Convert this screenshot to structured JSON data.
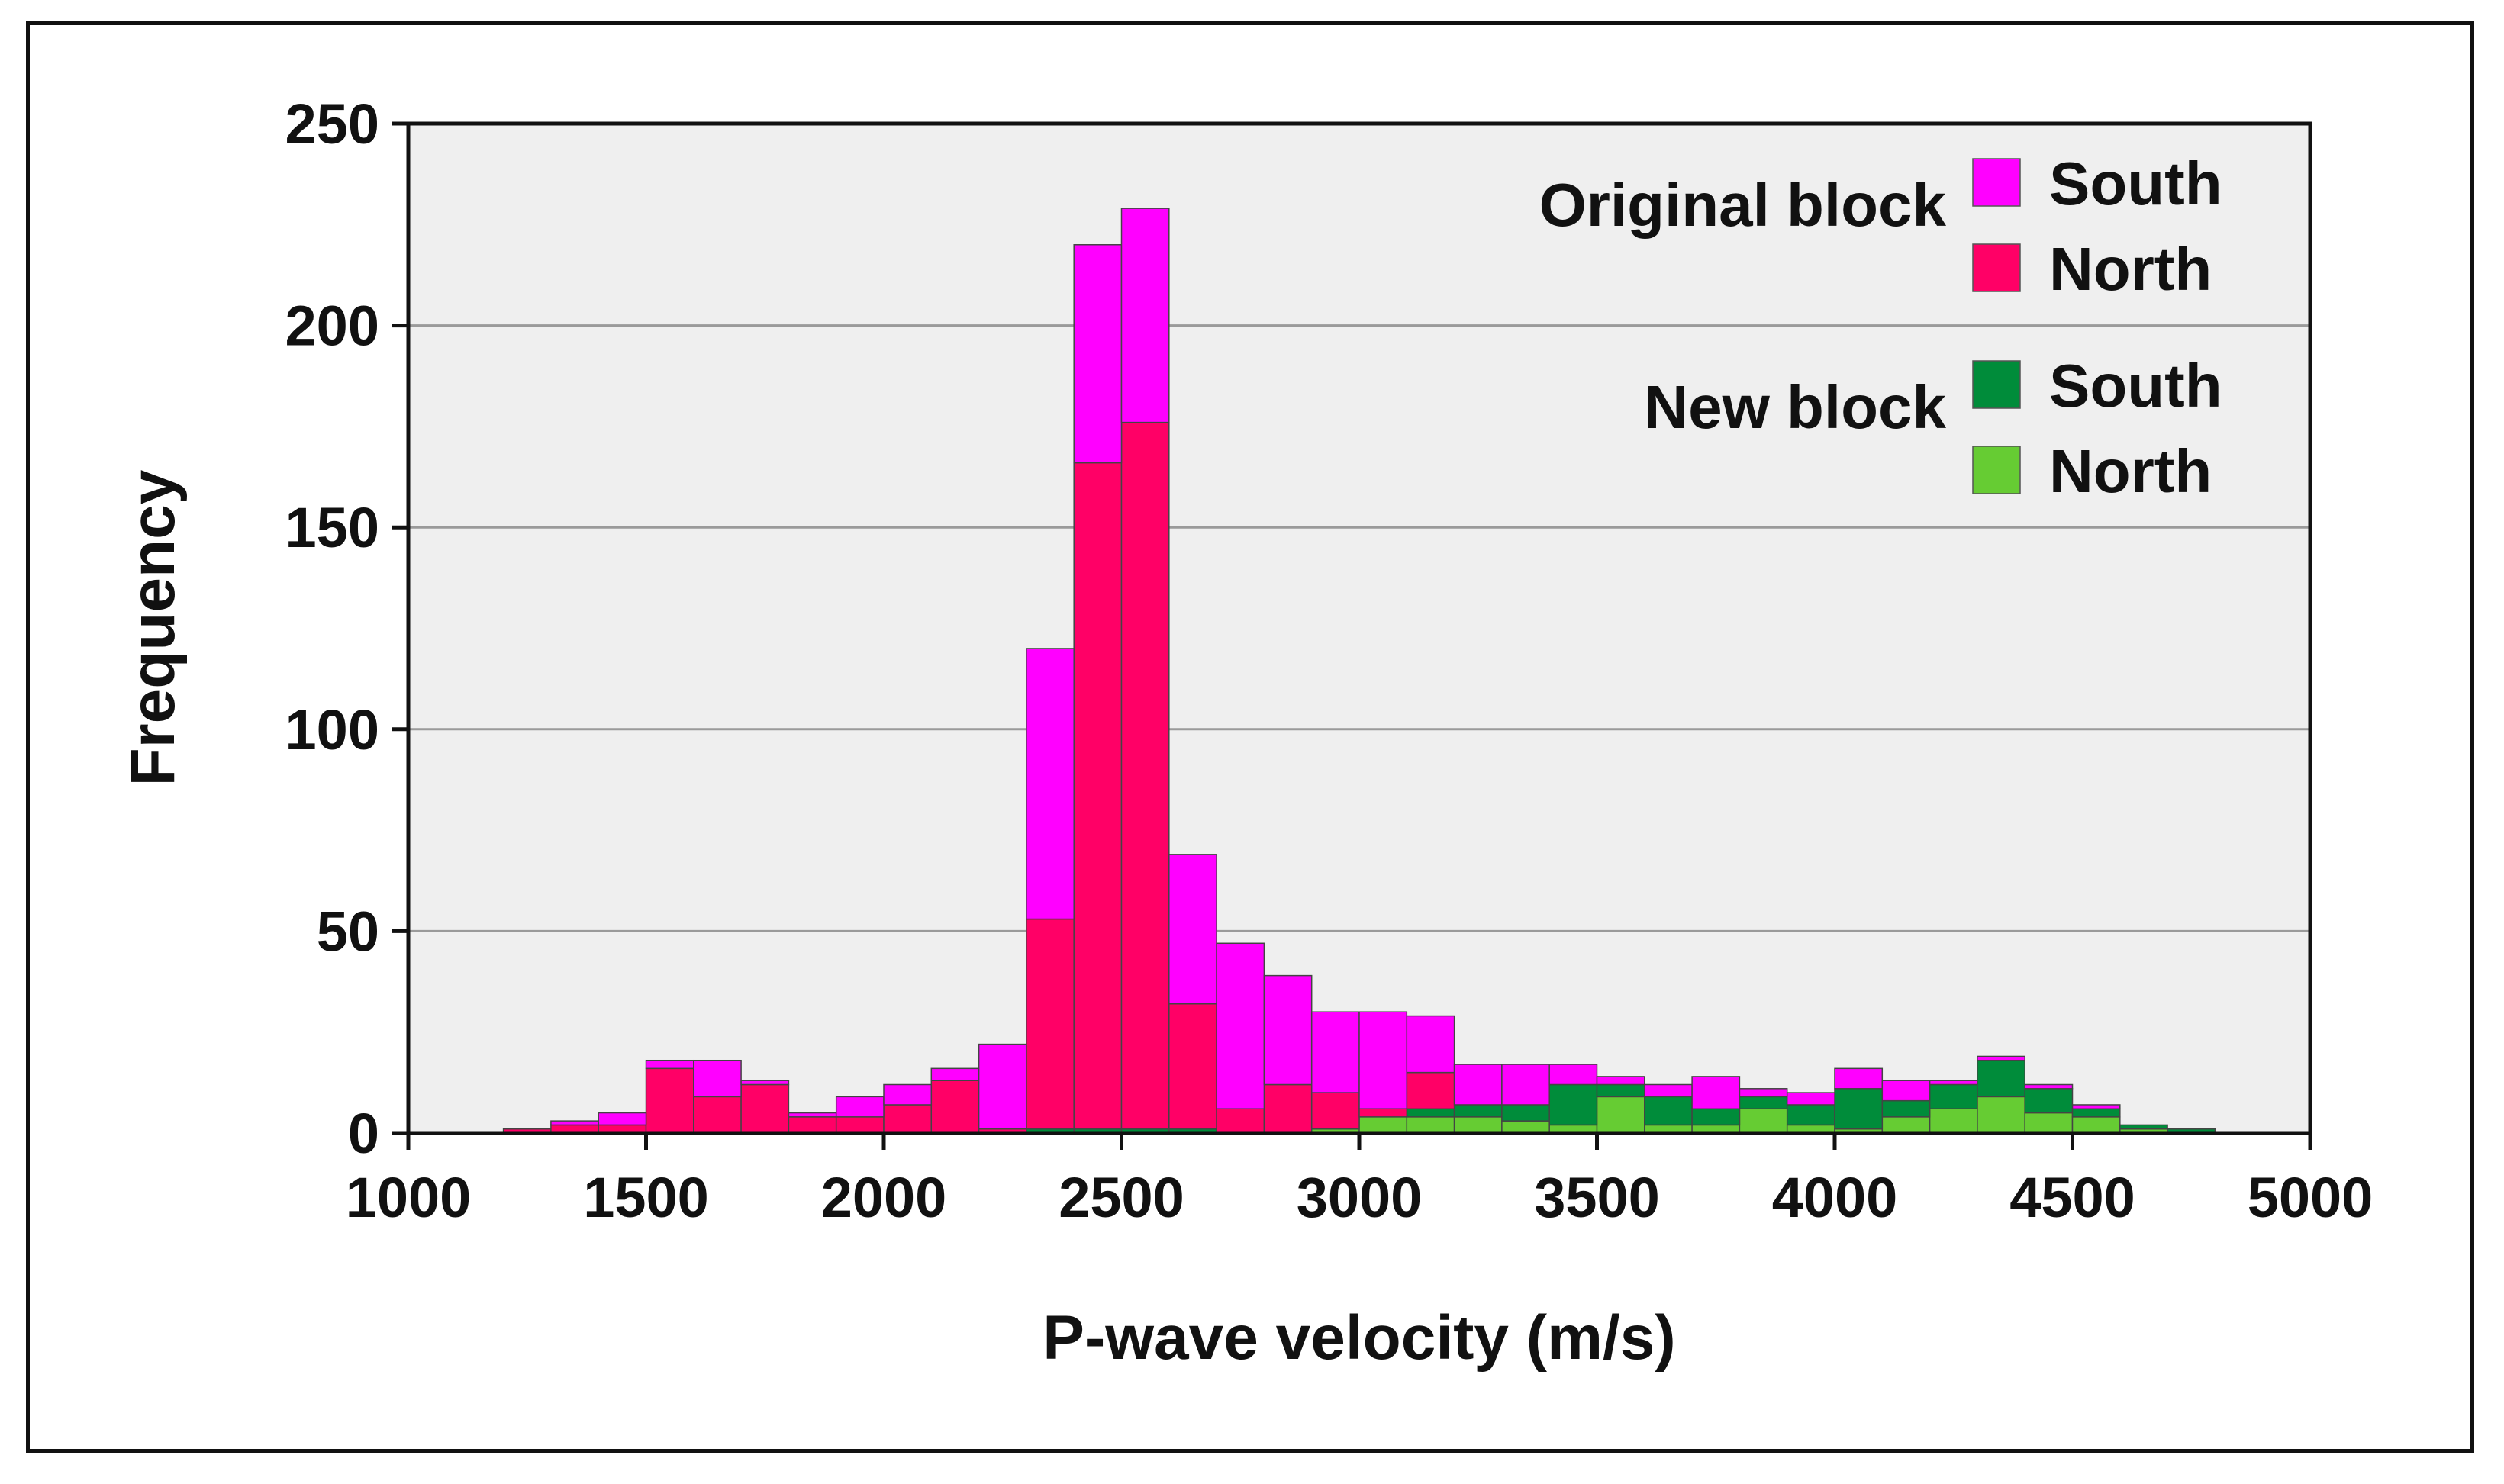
{
  "chart_data": {
    "type": "bar",
    "stacked": true,
    "title": "",
    "xlabel": "P-wave velocity (m/s)",
    "ylabel": "Frequency",
    "xlim": [
      1000,
      5000
    ],
    "ylim": [
      0,
      250
    ],
    "bin_width": 100,
    "xticks": [
      1000,
      1500,
      2000,
      2500,
      3000,
      3500,
      4000,
      4500,
      5000
    ],
    "yticks": [
      0,
      50,
      100,
      150,
      200,
      250
    ],
    "grid": "horizontal",
    "legend_position": "top-right",
    "legend_groups": [
      {
        "label": "Original block",
        "series": [
          0,
          1
        ]
      },
      {
        "label": "New block",
        "series": [
          2,
          3
        ]
      }
    ],
    "bin_starts": [
      1200,
      1300,
      1400,
      1500,
      1600,
      1700,
      1800,
      1900,
      2000,
      2100,
      2200,
      2300,
      2400,
      2500,
      2600,
      2700,
      2800,
      2900,
      3000,
      3100,
      3200,
      3300,
      3400,
      3500,
      3600,
      3700,
      3800,
      3900,
      4000,
      4100,
      4200,
      4300,
      4400,
      4500,
      4600,
      4700
    ],
    "series": [
      {
        "name": "South",
        "group": "Original block",
        "color": "#ff00ff",
        "values": [
          0,
          1,
          3,
          2,
          9,
          1,
          1,
          5,
          5,
          3,
          21,
          67,
          54,
          53,
          37,
          41,
          27,
          20,
          24,
          14,
          10,
          10,
          5,
          2,
          3,
          8,
          2,
          3,
          5,
          5,
          1,
          1,
          1,
          1,
          0,
          0
        ]
      },
      {
        "name": "North",
        "group": "Original block",
        "color": "#ff0066",
        "values": [
          1,
          2,
          2,
          16,
          9,
          12,
          4,
          4,
          7,
          13,
          1,
          52,
          165,
          175,
          31,
          6,
          12,
          9,
          2,
          9,
          0,
          0,
          0,
          0,
          0,
          0,
          0,
          0,
          0,
          0,
          0,
          0,
          0,
          0,
          0,
          0
        ]
      },
      {
        "name": "South",
        "group": "New block",
        "color": "#008c3a",
        "values": [
          0,
          0,
          0,
          0,
          0,
          0,
          0,
          0,
          0,
          0,
          0,
          1,
          1,
          1,
          1,
          0,
          0,
          0,
          0,
          2,
          3,
          4,
          10,
          3,
          7,
          4,
          3,
          5,
          10,
          4,
          6,
          9,
          6,
          2,
          1,
          1
        ]
      },
      {
        "name": "North",
        "group": "New block",
        "color": "#66cc33",
        "values": [
          0,
          0,
          0,
          0,
          0,
          0,
          0,
          0,
          0,
          0,
          0,
          0,
          0,
          0,
          0,
          0,
          0,
          1,
          4,
          4,
          4,
          3,
          2,
          9,
          2,
          2,
          6,
          2,
          1,
          4,
          6,
          9,
          5,
          4,
          1,
          0
        ]
      }
    ]
  }
}
